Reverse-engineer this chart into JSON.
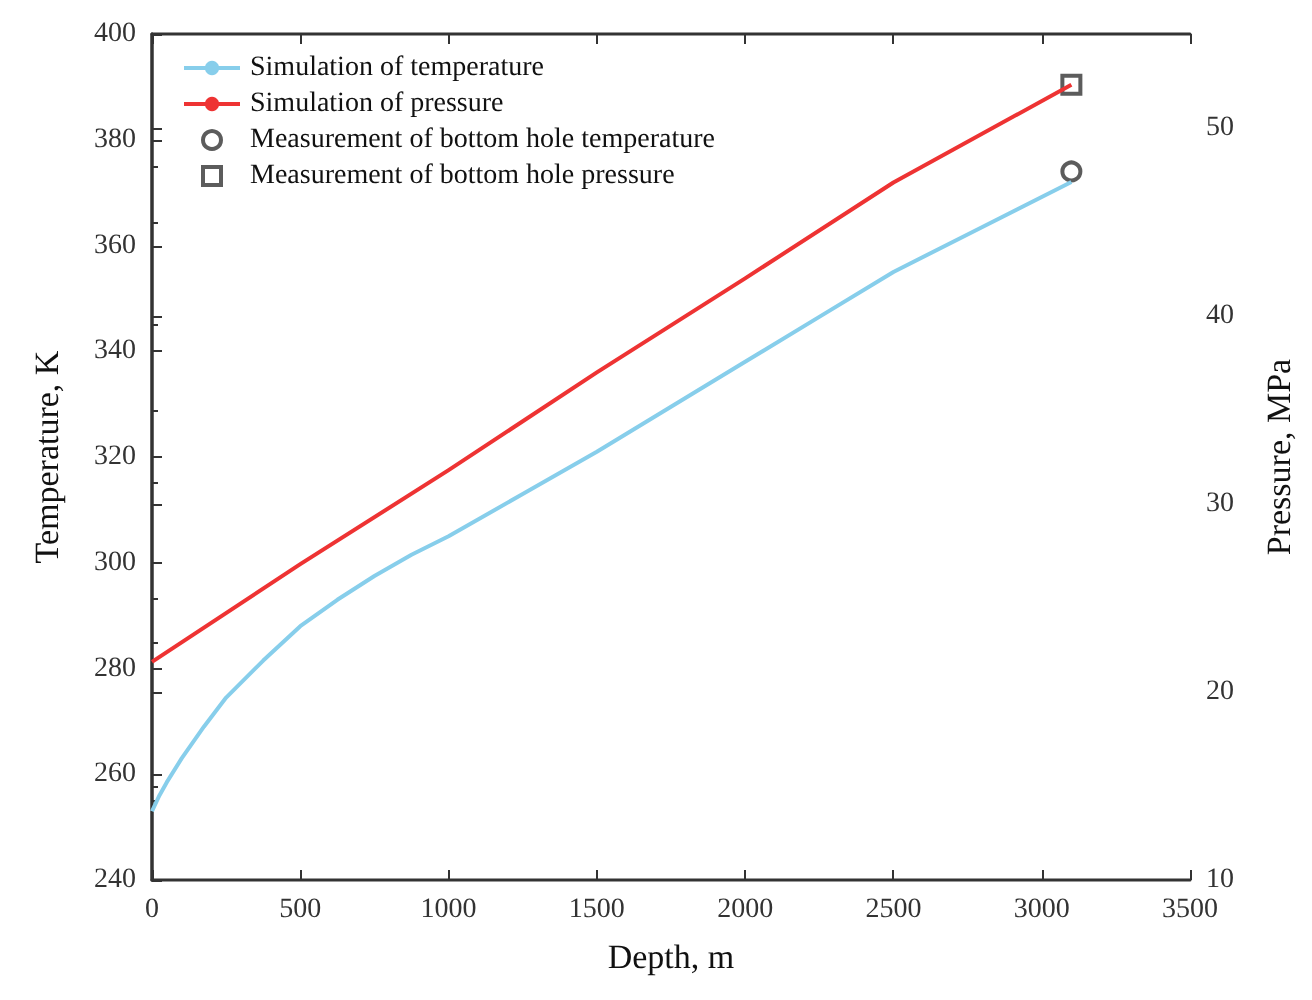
{
  "chart_data": {
    "type": "line",
    "xlabel": "Depth, m",
    "ylabel": "Temperature, K",
    "y2label": "Pressure, MPa",
    "xlim": [
      0,
      3500
    ],
    "xticks": [
      0,
      500,
      1000,
      1500,
      2000,
      2500,
      3000,
      3500
    ],
    "ylim": [
      240,
      400
    ],
    "yticks": [
      240,
      260,
      280,
      300,
      320,
      340,
      360,
      380,
      400
    ],
    "y2lim": [
      10,
      55
    ],
    "y2ticks": [
      10,
      20,
      30,
      40,
      50
    ],
    "grid": false,
    "legend": "top left",
    "series": [
      {
        "name": "Simulation of temperature",
        "color": "#87ceeb",
        "marker": "none",
        "x": [
          0,
          25,
          50,
          100,
          175,
          250,
          375,
          500,
          625,
          750,
          875,
          1000,
          1250,
          1500,
          1750,
          2000,
          2250,
          2500,
          2800,
          3100
        ],
        "values": [
          253,
          256,
          258.5,
          263,
          269,
          274.5,
          281.5,
          288,
          293,
          297.5,
          301.5,
          305,
          313,
          321,
          329.5,
          338,
          346.5,
          355,
          363.5,
          372
        ]
      },
      {
        "name": "Simulation of pressure",
        "color": "#ee3333",
        "axis": "y2",
        "marker": "none",
        "x": [
          0,
          500,
          1000,
          1500,
          2000,
          2500,
          3100
        ],
        "values": [
          21.6,
          26.8,
          31.8,
          37.0,
          42.0,
          47.1,
          52.3
        ]
      },
      {
        "name": "Measurement of bottom hole temperature",
        "type": "scatter",
        "color": "#333333",
        "marker": "circle",
        "x": [
          3100
        ],
        "values": [
          374
        ]
      },
      {
        "name": "Measurement of bottom hole pressure",
        "type": "scatter",
        "color": "#333333",
        "marker": "square",
        "axis": "y2",
        "x": [
          3100
        ],
        "values": [
          52.3
        ]
      }
    ]
  }
}
